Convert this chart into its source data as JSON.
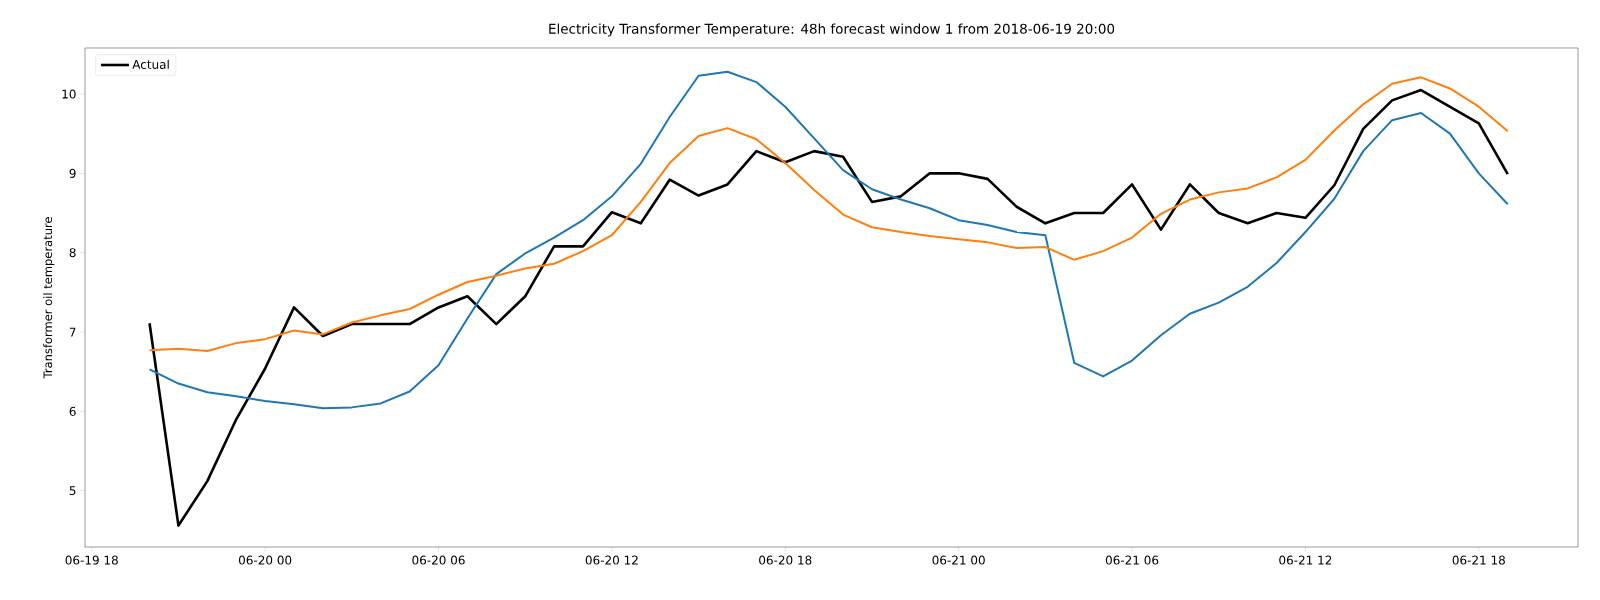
{
  "chart_data": {
    "type": "line",
    "title": "Electricity Transformer Temperature: 48h forecast window 1 from 2018-06-19 20:00",
    "ylabel": "Transformer oil temperature",
    "x": [
      "2018-06-19T20:00",
      "2018-06-19T21:00",
      "2018-06-19T22:00",
      "2018-06-19T23:00",
      "2018-06-20T00:00",
      "2018-06-20T01:00",
      "2018-06-20T02:00",
      "2018-06-20T03:00",
      "2018-06-20T04:00",
      "2018-06-20T05:00",
      "2018-06-20T06:00",
      "2018-06-20T07:00",
      "2018-06-20T08:00",
      "2018-06-20T09:00",
      "2018-06-20T10:00",
      "2018-06-20T11:00",
      "2018-06-20T12:00",
      "2018-06-20T13:00",
      "2018-06-20T14:00",
      "2018-06-20T15:00",
      "2018-06-20T16:00",
      "2018-06-20T17:00",
      "2018-06-20T18:00",
      "2018-06-20T19:00",
      "2018-06-20T20:00",
      "2018-06-20T21:00",
      "2018-06-20T22:00",
      "2018-06-20T23:00",
      "2018-06-21T00:00",
      "2018-06-21T01:00",
      "2018-06-21T02:00",
      "2018-06-21T03:00",
      "2018-06-21T04:00",
      "2018-06-21T05:00",
      "2018-06-21T06:00",
      "2018-06-21T07:00",
      "2018-06-21T08:00",
      "2018-06-21T09:00",
      "2018-06-21T10:00",
      "2018-06-21T11:00",
      "2018-06-21T12:00",
      "2018-06-21T13:00",
      "2018-06-21T14:00",
      "2018-06-21T15:00",
      "2018-06-21T16:00",
      "2018-06-21T17:00",
      "2018-06-21T18:00",
      "2018-06-21T19:00"
    ],
    "series": [
      {
        "name": "Actual",
        "color": "#000000",
        "values": [
          7.11,
          4.56,
          5.12,
          5.9,
          6.54,
          7.31,
          6.95,
          7.1,
          7.1,
          7.1,
          7.31,
          7.45,
          7.1,
          7.45,
          8.08,
          8.08,
          8.51,
          8.37,
          8.92,
          8.72,
          8.86,
          9.28,
          9.14,
          9.28,
          9.21,
          8.64,
          8.71,
          9.0,
          9.0,
          8.93,
          8.58,
          8.37,
          8.5,
          8.5,
          8.86,
          8.29,
          8.86,
          8.5,
          8.37,
          8.5,
          8.44,
          8.85,
          9.56,
          9.92,
          10.05,
          9.84,
          9.63,
          8.99
        ]
      },
      {
        "color": "#1f77b4",
        "values": [
          6.53,
          6.35,
          6.24,
          6.19,
          6.13,
          6.09,
          6.04,
          6.05,
          6.1,
          6.25,
          6.58,
          7.17,
          7.73,
          7.99,
          8.19,
          8.41,
          8.71,
          9.12,
          9.71,
          10.23,
          10.28,
          10.15,
          9.84,
          9.44,
          9.04,
          8.8,
          8.67,
          8.56,
          8.41,
          8.35,
          8.26,
          8.22,
          6.61,
          6.44,
          6.64,
          6.96,
          7.23,
          7.37,
          7.57,
          7.87,
          8.26,
          8.68,
          9.28,
          9.67,
          9.76,
          9.5,
          9.0,
          8.61
        ]
      },
      {
        "color": "#ff7f0e",
        "values": [
          6.77,
          6.79,
          6.76,
          6.86,
          6.91,
          7.02,
          6.97,
          7.12,
          7.21,
          7.29,
          7.47,
          7.63,
          7.71,
          7.8,
          7.86,
          8.02,
          8.22,
          8.64,
          9.13,
          9.47,
          9.57,
          9.43,
          9.13,
          8.79,
          8.48,
          8.32,
          8.26,
          8.21,
          8.17,
          8.13,
          8.06,
          8.07,
          7.91,
          8.02,
          8.19,
          8.49,
          8.67,
          8.76,
          8.81,
          8.95,
          9.17,
          9.54,
          9.87,
          10.13,
          10.21,
          10.07,
          9.84,
          9.53
        ]
      }
    ],
    "xlim": [
      "2018-06-19T17:46",
      "2018-06-21T21:26"
    ],
    "xticks": [
      {
        "value": "2018-06-19T18:00",
        "label": "06-19 18"
      },
      {
        "value": "2018-06-20T00:00",
        "label": "06-20 00"
      },
      {
        "value": "2018-06-20T06:00",
        "label": "06-20 06"
      },
      {
        "value": "2018-06-20T12:00",
        "label": "06-20 12"
      },
      {
        "value": "2018-06-20T18:00",
        "label": "06-20 18"
      },
      {
        "value": "2018-06-21T00:00",
        "label": "06-21 00"
      },
      {
        "value": "2018-06-21T06:00",
        "label": "06-21 06"
      },
      {
        "value": "2018-06-21T12:00",
        "label": "06-21 12"
      },
      {
        "value": "2018-06-21T18:00",
        "label": "06-21 18"
      }
    ],
    "ylim": [
      4.29,
      10.58
    ],
    "yticks": [
      5,
      6,
      7,
      8,
      9,
      10
    ],
    "legend": "top left"
  }
}
